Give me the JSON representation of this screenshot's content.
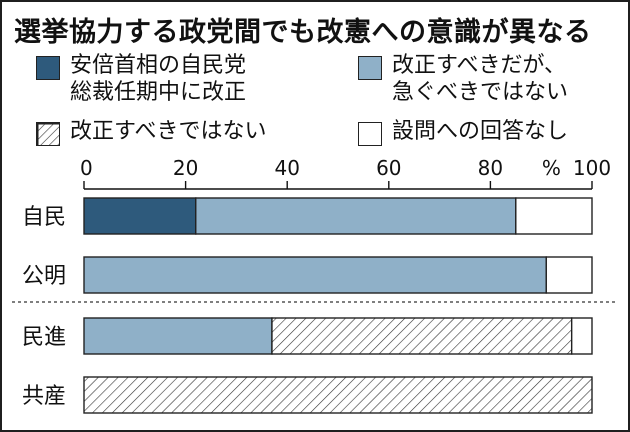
{
  "chart_data": {
    "type": "bar",
    "stacked": true,
    "orientation": "horizontal",
    "title": "選挙協力する政党間でも改憲への意識が異なる",
    "unit_label": "%",
    "xlim": [
      0,
      100
    ],
    "ticks": [
      "0",
      "20",
      "40",
      "60",
      "80",
      "100"
    ],
    "tick_values": [
      0,
      20,
      40,
      60,
      80,
      100
    ],
    "categories": [
      "自民",
      "公明",
      "民進",
      "共産"
    ],
    "series": [
      {
        "name": "安倍首相の自民党\n総裁任期中に改正",
        "fill": "#2e5a7c",
        "pattern": "solid",
        "values": [
          22,
          0,
          0,
          0
        ]
      },
      {
        "name": "改正すべきだが、\n急ぐべきではない",
        "fill": "#8fb0c8",
        "pattern": "solid",
        "values": [
          63,
          91,
          37,
          0
        ]
      },
      {
        "name": "改正すべきではない",
        "fill": "#ffffff",
        "pattern": "hatch",
        "values": [
          0,
          0,
          59,
          100
        ]
      },
      {
        "name": "設問への回答なし",
        "fill": "#ffffff",
        "pattern": "solid",
        "values": [
          15,
          9,
          4,
          0
        ]
      }
    ],
    "divider_after_category_index": 1,
    "legend_position": "top"
  }
}
